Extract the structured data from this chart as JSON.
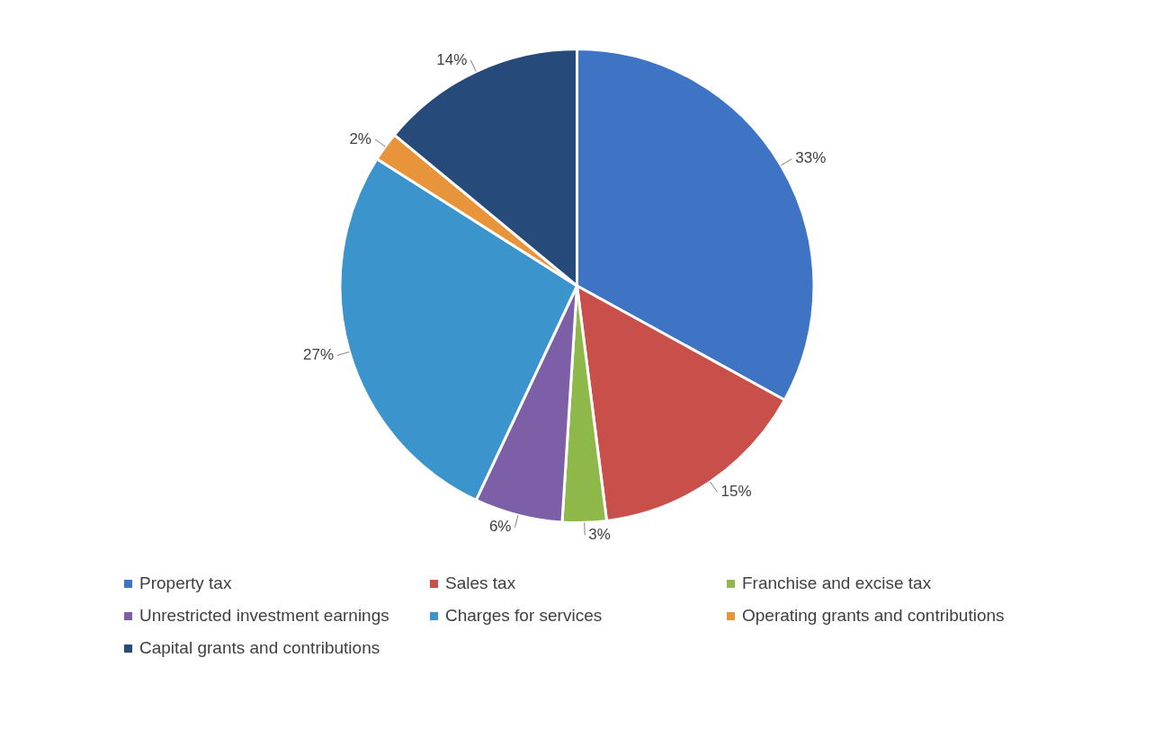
{
  "chart_data": {
    "type": "pie",
    "categories": [
      "Property tax",
      "Sales tax",
      "Franchise and excise tax",
      "Unrestricted investment earnings",
      "Charges for services",
      "Operating grants and contributions",
      "Capital grants and contributions"
    ],
    "values": [
      33,
      15,
      3,
      6,
      27,
      2,
      14
    ],
    "colors": [
      "#3f74c4",
      "#c9504a",
      "#8fb84a",
      "#7d5fa8",
      "#3b95cc",
      "#e8943a",
      "#264a7a"
    ],
    "value_labels": [
      "33%",
      "15%",
      "3%",
      "6%",
      "27%",
      "2%",
      "14%"
    ],
    "legend": "bottom"
  }
}
